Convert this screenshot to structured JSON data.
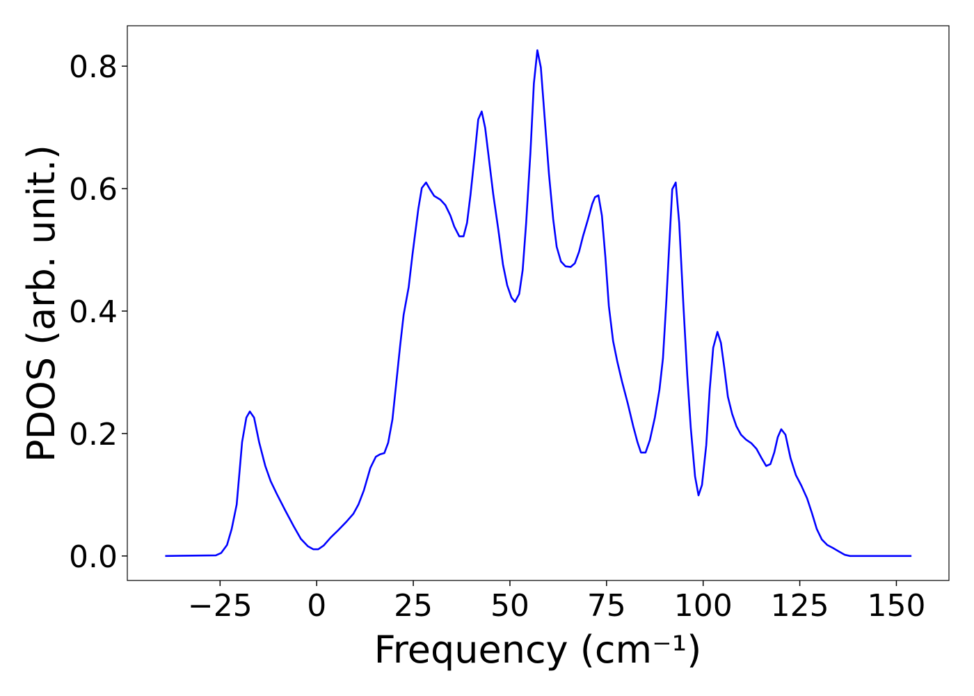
{
  "chart_data": {
    "type": "line",
    "xlabel": "Frequency (cm⁻¹)",
    "ylabel": "PDOS (arb. unit.)",
    "color": "#0000ff",
    "x": [
      -39.2,
      -26.1,
      -24.7,
      -23.2,
      -22,
      -20.7,
      -19.3,
      -18.2,
      -17.3,
      -16.2,
      -14.9,
      -13.3,
      -11.9,
      -10.3,
      -8.1,
      -5.9,
      -4.1,
      -2.3,
      -0.9,
      0.4,
      1.8,
      3.6,
      5.4,
      7.7,
      9.5,
      10.8,
      12.2,
      13.9,
      15.3,
      16.4,
      17.5,
      18.5,
      19.6,
      20.5,
      21.6,
      22.5,
      23.8,
      24.8,
      26.3,
      27.2,
      28.3,
      29.3,
      30.4,
      32.0,
      33.3,
      34.6,
      35.6,
      36.9,
      38.0,
      38.9,
      39.8,
      40.9,
      41.8,
      42.7,
      43.6,
      44.6,
      45.7,
      47.0,
      48.2,
      49.3,
      50.4,
      51.3,
      52.4,
      53.3,
      54.2,
      55.3,
      56.2,
      57.1,
      58.0,
      59.0,
      60.1,
      61.2,
      62.1,
      63.2,
      64.4,
      65.7,
      66.8,
      67.9,
      68.9,
      70.2,
      71.3,
      72.0,
      72.9,
      73.8,
      74.7,
      75.6,
      76.7,
      77.8,
      79.0,
      80.5,
      81.9,
      83.0,
      83.9,
      85.1,
      86.2,
      87.5,
      88.7,
      89.6,
      90.5,
      91.3,
      92.0,
      92.9,
      93.8,
      94.9,
      95.9,
      96.8,
      97.9,
      98.8,
      99.7,
      100.8,
      101.7,
      102.6,
      103.7,
      104.6,
      105.5,
      106.4,
      107.5,
      108.6,
      109.8,
      111.1,
      112.5,
      113.8,
      115.0,
      116.3,
      117.4,
      118.4,
      119.3,
      120.2,
      121.3,
      122.6,
      124.0,
      125.4,
      126.9,
      128.2,
      129.4,
      130.7,
      132.1,
      133.6,
      135.2,
      136.6,
      138.0,
      153.9
    ],
    "values": [
      0,
      0.001,
      0.005,
      0.018,
      0.044,
      0.084,
      0.186,
      0.226,
      0.236,
      0.226,
      0.186,
      0.147,
      0.122,
      0.101,
      0.074,
      0.048,
      0.028,
      0.016,
      0.011,
      0.011,
      0.017,
      0.03,
      0.041,
      0.056,
      0.069,
      0.084,
      0.107,
      0.144,
      0.162,
      0.166,
      0.168,
      0.185,
      0.223,
      0.277,
      0.344,
      0.394,
      0.439,
      0.493,
      0.567,
      0.601,
      0.61,
      0.599,
      0.588,
      0.582,
      0.573,
      0.556,
      0.538,
      0.522,
      0.522,
      0.544,
      0.59,
      0.656,
      0.713,
      0.726,
      0.699,
      0.647,
      0.59,
      0.533,
      0.476,
      0.442,
      0.422,
      0.415,
      0.428,
      0.467,
      0.544,
      0.658,
      0.772,
      0.826,
      0.798,
      0.715,
      0.624,
      0.55,
      0.505,
      0.481,
      0.473,
      0.472,
      0.478,
      0.497,
      0.522,
      0.55,
      0.575,
      0.586,
      0.589,
      0.556,
      0.488,
      0.408,
      0.351,
      0.317,
      0.285,
      0.249,
      0.212,
      0.186,
      0.169,
      0.169,
      0.189,
      0.226,
      0.272,
      0.323,
      0.419,
      0.516,
      0.599,
      0.61,
      0.544,
      0.408,
      0.294,
      0.209,
      0.13,
      0.099,
      0.116,
      0.181,
      0.272,
      0.34,
      0.366,
      0.348,
      0.306,
      0.26,
      0.232,
      0.212,
      0.198,
      0.19,
      0.184,
      0.175,
      0.161,
      0.147,
      0.15,
      0.169,
      0.194,
      0.207,
      0.198,
      0.16,
      0.132,
      0.115,
      0.094,
      0.069,
      0.044,
      0.027,
      0.018,
      0.013,
      0.007,
      0.002,
      0,
      0
    ],
    "xlim": [
      -49,
      163.6
    ],
    "ylim": [
      -0.04,
      0.866
    ],
    "xticks": [
      {
        "value": -25,
        "label": "−25"
      },
      0,
      25,
      50,
      75,
      100,
      125,
      150
    ],
    "yticks": [
      {
        "value": 0,
        "label": "0.0"
      },
      0.2,
      0.4,
      0.6,
      0.8
    ]
  }
}
